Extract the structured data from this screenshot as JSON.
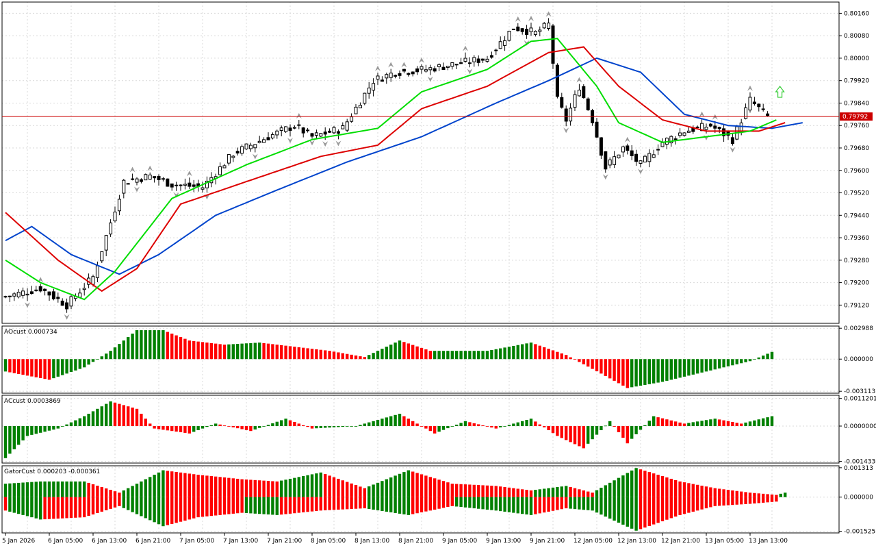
{
  "colors": {
    "background": "#ffffff",
    "grid": "#d9d9d9",
    "axis": "#000000",
    "bull_candle": "#ffffff",
    "bear_candle": "#000000",
    "alligator_lips": "#00dd00",
    "alligator_teeth": "#dd0000",
    "alligator_jaw": "#0044cc",
    "bid_line": "#cc0000",
    "price_tag_bg": "#cc0000",
    "price_tag_text": "#ffffff",
    "hist_up": "#008000",
    "hist_down": "#ff0000",
    "fractal": "#999999",
    "signal_arrow": "#33cc33"
  },
  "x_axis": {
    "labels": [
      "5 Jan 2026",
      "6 Jan 05:00",
      "6 Jan 13:00",
      "6 Jan 21:00",
      "7 Jan 05:00",
      "7 Jan 13:00",
      "7 Jan 21:00",
      "8 Jan 05:00",
      "8 Jan 13:00",
      "8 Jan 21:00",
      "9 Jan 05:00",
      "9 Jan 13:00",
      "9 Jan 21:00",
      "12 Jan 05:00",
      "12 Jan 13:00",
      "12 Jan 21:00",
      "13 Jan 05:00",
      "13 Jan 13:00"
    ]
  },
  "chart_data": [
    {
      "type": "candlestick",
      "pane": "main",
      "y_ticks": [
        "0.80160",
        "0.80080",
        "0.80000",
        "0.79920",
        "0.79840",
        "0.79760",
        "0.79680",
        "0.79600",
        "0.79520",
        "0.79440",
        "0.79360",
        "0.79280",
        "0.79200",
        "0.79120"
      ],
      "ylim": [
        0.79055,
        0.802
      ],
      "current_price": 0.79792,
      "current_price_label": "0.79792",
      "candle_count": 175,
      "key_points": [
        {
          "i": 0,
          "c": 0.7915
        },
        {
          "i": 8,
          "c": 0.7918
        },
        {
          "i": 14,
          "c": 0.7912
        },
        {
          "i": 20,
          "c": 0.7922
        },
        {
          "i": 27,
          "c": 0.7956
        },
        {
          "i": 33,
          "c": 0.7958
        },
        {
          "i": 38,
          "c": 0.7955
        },
        {
          "i": 45,
          "c": 0.7954
        },
        {
          "i": 52,
          "c": 0.7966
        },
        {
          "i": 60,
          "c": 0.7972
        },
        {
          "i": 66,
          "c": 0.7976
        },
        {
          "i": 70,
          "c": 0.7972
        },
        {
          "i": 77,
          "c": 0.7975
        },
        {
          "i": 84,
          "c": 0.7992
        },
        {
          "i": 89,
          "c": 0.7995
        },
        {
          "i": 96,
          "c": 0.7996
        },
        {
          "i": 103,
          "c": 0.7998
        },
        {
          "i": 110,
          "c": 0.8
        },
        {
          "i": 116,
          "c": 0.8011
        },
        {
          "i": 121,
          "c": 0.8009
        },
        {
          "i": 124,
          "c": 0.8012
        },
        {
          "i": 126,
          "c": 0.7985
        },
        {
          "i": 128,
          "c": 0.7978
        },
        {
          "i": 131,
          "c": 0.799
        },
        {
          "i": 134,
          "c": 0.7978
        },
        {
          "i": 137,
          "c": 0.7961
        },
        {
          "i": 141,
          "c": 0.7968
        },
        {
          "i": 145,
          "c": 0.7962
        },
        {
          "i": 150,
          "c": 0.797
        },
        {
          "i": 155,
          "c": 0.7974
        },
        {
          "i": 161,
          "c": 0.7976
        },
        {
          "i": 166,
          "c": 0.7971
        },
        {
          "i": 170,
          "c": 0.7985
        },
        {
          "i": 174,
          "c": 0.79792
        }
      ],
      "alligator": {
        "lips": [
          {
            "i": 0,
            "v": 0.7928
          },
          {
            "i": 8,
            "v": 0.792
          },
          {
            "i": 18,
            "v": 0.7914
          },
          {
            "i": 25,
            "v": 0.7924
          },
          {
            "i": 38,
            "v": 0.795
          },
          {
            "i": 55,
            "v": 0.7962
          },
          {
            "i": 70,
            "v": 0.7971
          },
          {
            "i": 85,
            "v": 0.7975
          },
          {
            "i": 95,
            "v": 0.7988
          },
          {
            "i": 110,
            "v": 0.7996
          },
          {
            "i": 120,
            "v": 0.8006
          },
          {
            "i": 126,
            "v": 0.8007
          },
          {
            "i": 135,
            "v": 0.799
          },
          {
            "i": 140,
            "v": 0.7977
          },
          {
            "i": 150,
            "v": 0.797
          },
          {
            "i": 160,
            "v": 0.7972
          },
          {
            "i": 170,
            "v": 0.7974
          },
          {
            "i": 176,
            "v": 0.7978
          }
        ],
        "teeth": [
          {
            "i": 0,
            "v": 0.7945
          },
          {
            "i": 12,
            "v": 0.7928
          },
          {
            "i": 22,
            "v": 0.7917
          },
          {
            "i": 30,
            "v": 0.7925
          },
          {
            "i": 40,
            "v": 0.7948
          },
          {
            "i": 55,
            "v": 0.7956
          },
          {
            "i": 72,
            "v": 0.7965
          },
          {
            "i": 85,
            "v": 0.7969
          },
          {
            "i": 95,
            "v": 0.7982
          },
          {
            "i": 110,
            "v": 0.799
          },
          {
            "i": 124,
            "v": 0.8002
          },
          {
            "i": 132,
            "v": 0.8004
          },
          {
            "i": 140,
            "v": 0.799
          },
          {
            "i": 150,
            "v": 0.7978
          },
          {
            "i": 160,
            "v": 0.7974
          },
          {
            "i": 172,
            "v": 0.7974
          },
          {
            "i": 178,
            "v": 0.7977
          }
        ],
        "jaw": [
          {
            "i": 0,
            "v": 0.7935
          },
          {
            "i": 6,
            "v": 0.794
          },
          {
            "i": 15,
            "v": 0.793
          },
          {
            "i": 26,
            "v": 0.7923
          },
          {
            "i": 35,
            "v": 0.793
          },
          {
            "i": 48,
            "v": 0.7944
          },
          {
            "i": 62,
            "v": 0.7953
          },
          {
            "i": 78,
            "v": 0.7963
          },
          {
            "i": 95,
            "v": 0.7972
          },
          {
            "i": 112,
            "v": 0.7984
          },
          {
            "i": 124,
            "v": 0.7992
          },
          {
            "i": 135,
            "v": 0.8
          },
          {
            "i": 145,
            "v": 0.7995
          },
          {
            "i": 155,
            "v": 0.798
          },
          {
            "i": 165,
            "v": 0.7976
          },
          {
            "i": 175,
            "v": 0.7975
          },
          {
            "i": 182,
            "v": 0.7977
          }
        ]
      }
    },
    {
      "type": "bar",
      "pane": "ao",
      "label": "AOcust 0.000734",
      "y_ticks": [
        "0.002988",
        "0.000000",
        "-0.003113"
      ],
      "ylim": [
        -0.0033,
        0.0032
      ],
      "key_points": [
        {
          "i": 0,
          "v": -0.0012
        },
        {
          "i": 10,
          "v": -0.002
        },
        {
          "i": 18,
          "v": -0.0008
        },
        {
          "i": 24,
          "v": 0.0008
        },
        {
          "i": 30,
          "v": 0.0028
        },
        {
          "i": 36,
          "v": 0.0028
        },
        {
          "i": 42,
          "v": 0.0018
        },
        {
          "i": 50,
          "v": 0.0014
        },
        {
          "i": 58,
          "v": 0.0016
        },
        {
          "i": 66,
          "v": 0.0012
        },
        {
          "i": 74,
          "v": 0.0008
        },
        {
          "i": 82,
          "v": 0.0002
        },
        {
          "i": 90,
          "v": 0.0018
        },
        {
          "i": 97,
          "v": 0.0008
        },
        {
          "i": 110,
          "v": 0.0008
        },
        {
          "i": 120,
          "v": 0.0016
        },
        {
          "i": 128,
          "v": 0.0004
        },
        {
          "i": 136,
          "v": -0.0014
        },
        {
          "i": 142,
          "v": -0.0028
        },
        {
          "i": 150,
          "v": -0.0022
        },
        {
          "i": 160,
          "v": -0.0012
        },
        {
          "i": 170,
          "v": -0.0002
        },
        {
          "i": 175,
          "v": 0.0007
        }
      ]
    },
    {
      "type": "bar",
      "pane": "ac",
      "label": "ACcust 0.0003869",
      "y_ticks": [
        "0.0011201",
        "0.0000000",
        "-0.0014336"
      ],
      "ylim": [
        -0.0015,
        0.00125
      ],
      "key_points": [
        {
          "i": 0,
          "v": -0.0013
        },
        {
          "i": 5,
          "v": -0.0004
        },
        {
          "i": 12,
          "v": -0.0001
        },
        {
          "i": 18,
          "v": 0.0004
        },
        {
          "i": 24,
          "v": 0.001
        },
        {
          "i": 30,
          "v": 0.0007
        },
        {
          "i": 34,
          "v": -0.0001
        },
        {
          "i": 42,
          "v": -0.0003
        },
        {
          "i": 48,
          "v": 0.0001
        },
        {
          "i": 56,
          "v": -0.0002
        },
        {
          "i": 64,
          "v": 0.0003
        },
        {
          "i": 70,
          "v": -0.0001
        },
        {
          "i": 80,
          "v": 0.0
        },
        {
          "i": 90,
          "v": 0.0005
        },
        {
          "i": 98,
          "v": -0.0003
        },
        {
          "i": 105,
          "v": 0.0002
        },
        {
          "i": 112,
          "v": -0.0001
        },
        {
          "i": 120,
          "v": 0.0003
        },
        {
          "i": 126,
          "v": -0.0004
        },
        {
          "i": 132,
          "v": -0.0009
        },
        {
          "i": 138,
          "v": 0.0002
        },
        {
          "i": 142,
          "v": -0.0007
        },
        {
          "i": 148,
          "v": 0.0004
        },
        {
          "i": 155,
          "v": 0.0001
        },
        {
          "i": 162,
          "v": 0.0003
        },
        {
          "i": 168,
          "v": 0.0001
        },
        {
          "i": 175,
          "v": 0.0004
        }
      ]
    },
    {
      "type": "bar",
      "pane": "gator",
      "label": "GatorCust 0.000203 -0.000361",
      "y_ticks": [
        "0.001313",
        "0.000000",
        "-0.001525"
      ],
      "ylim": [
        -0.0016,
        0.0014
      ],
      "upper_key_points": [
        {
          "i": 0,
          "v": 0.0006
        },
        {
          "i": 8,
          "v": 0.0007
        },
        {
          "i": 18,
          "v": 0.0007
        },
        {
          "i": 26,
          "v": 0.0002
        },
        {
          "i": 36,
          "v": 0.0012
        },
        {
          "i": 44,
          "v": 0.001
        },
        {
          "i": 54,
          "v": 0.0008
        },
        {
          "i": 62,
          "v": 0.0007
        },
        {
          "i": 72,
          "v": 0.0011
        },
        {
          "i": 82,
          "v": 0.0004
        },
        {
          "i": 92,
          "v": 0.0012
        },
        {
          "i": 102,
          "v": 0.0006
        },
        {
          "i": 112,
          "v": 0.0005
        },
        {
          "i": 120,
          "v": 0.0003
        },
        {
          "i": 128,
          "v": 0.0005
        },
        {
          "i": 134,
          "v": 0.0002
        },
        {
          "i": 144,
          "v": 0.0013
        },
        {
          "i": 154,
          "v": 0.0007
        },
        {
          "i": 162,
          "v": 0.0004
        },
        {
          "i": 170,
          "v": 0.0002
        },
        {
          "i": 176,
          "v": 0.0001
        },
        {
          "i": 178,
          "v": 0.0002
        }
      ],
      "lower_key_points": [
        {
          "i": 0,
          "v": -0.0006
        },
        {
          "i": 8,
          "v": -0.001
        },
        {
          "i": 18,
          "v": -0.0009
        },
        {
          "i": 26,
          "v": -0.0004
        },
        {
          "i": 36,
          "v": -0.0013
        },
        {
          "i": 44,
          "v": -0.0009
        },
        {
          "i": 54,
          "v": -0.0007
        },
        {
          "i": 62,
          "v": -0.0008
        },
        {
          "i": 72,
          "v": -0.0006
        },
        {
          "i": 82,
          "v": -0.0005
        },
        {
          "i": 92,
          "v": -0.0008
        },
        {
          "i": 102,
          "v": -0.0004
        },
        {
          "i": 112,
          "v": -0.0006
        },
        {
          "i": 120,
          "v": -0.0008
        },
        {
          "i": 128,
          "v": -0.0005
        },
        {
          "i": 134,
          "v": -0.0006
        },
        {
          "i": 144,
          "v": -0.0015
        },
        {
          "i": 154,
          "v": -0.0008
        },
        {
          "i": 162,
          "v": -0.0004
        },
        {
          "i": 170,
          "v": -0.0003
        },
        {
          "i": 176,
          "v": -0.0002
        }
      ]
    }
  ]
}
